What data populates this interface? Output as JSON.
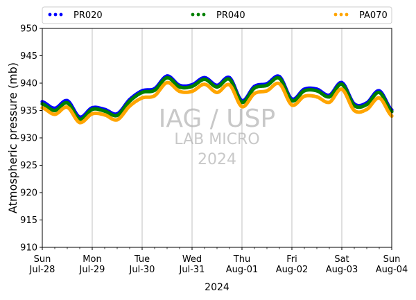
{
  "chart_data": {
    "type": "scatter",
    "title": "",
    "xlabel": "2024",
    "ylabel": "Atmospheric pressure (mb)",
    "ylim": [
      910,
      950
    ],
    "yticks": [
      910,
      915,
      920,
      925,
      930,
      935,
      940,
      945,
      950
    ],
    "xlim": [
      "2024-07-28T00:00",
      "2024-08-04T00:00"
    ],
    "xticks": [
      {
        "day": "Sun",
        "date": "Jul-28"
      },
      {
        "day": "Mon",
        "date": "Jul-29"
      },
      {
        "day": "Tue",
        "date": "Jul-30"
      },
      {
        "day": "Wed",
        "date": "Jul-31"
      },
      {
        "day": "Thu",
        "date": "Aug-01"
      },
      {
        "day": "Fri",
        "date": "Aug-02"
      },
      {
        "day": "Sat",
        "date": "Aug-03"
      },
      {
        "day": "Sun",
        "date": "Aug-04"
      }
    ],
    "grid": "vertical",
    "legend_position": "top",
    "watermark": [
      "IAG / USP",
      "LAB MICRO",
      "2024"
    ],
    "series": [
      {
        "name": "PR020",
        "color": "#0000ff",
        "x": [
          "2024-07-28T00:00",
          "2024-07-28T06:00",
          "2024-07-28T12:00",
          "2024-07-28T18:00",
          "2024-07-29T00:00",
          "2024-07-29T06:00",
          "2024-07-29T12:00",
          "2024-07-29T18:00",
          "2024-07-30T00:00",
          "2024-07-30T06:00",
          "2024-07-30T12:00",
          "2024-07-30T18:00",
          "2024-07-31T00:00",
          "2024-07-31T06:00",
          "2024-07-31T12:00",
          "2024-07-31T18:00",
          "2024-08-01T00:00",
          "2024-08-01T06:00",
          "2024-08-01T12:00",
          "2024-08-01T18:00",
          "2024-08-02T00:00",
          "2024-08-02T06:00",
          "2024-08-02T12:00",
          "2024-08-02T18:00",
          "2024-08-03T00:00",
          "2024-08-03T06:00",
          "2024-08-03T12:00",
          "2024-08-03T18:00",
          "2024-08-04T00:00"
        ],
        "y": [
          936.6,
          935.4,
          936.8,
          933.8,
          935.5,
          935.2,
          934.4,
          937.0,
          938.6,
          939.0,
          941.3,
          939.6,
          939.7,
          941.0,
          939.6,
          941.0,
          936.8,
          939.4,
          939.9,
          941.2,
          937.1,
          938.9,
          938.9,
          937.8,
          940.1,
          936.2,
          936.4,
          938.6,
          935.1
        ]
      },
      {
        "name": "PR040",
        "color": "#008000",
        "x": [
          "2024-07-28T00:00",
          "2024-07-28T06:00",
          "2024-07-28T12:00",
          "2024-07-28T18:00",
          "2024-07-29T00:00",
          "2024-07-29T06:00",
          "2024-07-29T12:00",
          "2024-07-29T18:00",
          "2024-07-30T00:00",
          "2024-07-30T06:00",
          "2024-07-30T12:00",
          "2024-07-30T18:00",
          "2024-07-31T00:00",
          "2024-07-31T06:00",
          "2024-07-31T12:00",
          "2024-07-31T18:00",
          "2024-08-01T00:00",
          "2024-08-01T06:00",
          "2024-08-01T12:00",
          "2024-08-01T18:00",
          "2024-08-02T00:00",
          "2024-08-02T06:00",
          "2024-08-02T12:00",
          "2024-08-02T18:00",
          "2024-08-03T00:00",
          "2024-08-03T06:00",
          "2024-08-03T12:00",
          "2024-08-03T18:00",
          "2024-08-04T00:00"
        ],
        "y": [
          936.2,
          935.0,
          936.4,
          933.4,
          935.2,
          934.9,
          934.1,
          936.7,
          938.3,
          938.7,
          941.0,
          939.3,
          939.4,
          940.7,
          939.3,
          940.7,
          936.5,
          939.1,
          939.6,
          940.9,
          936.8,
          938.6,
          938.6,
          937.5,
          939.8,
          935.9,
          936.1,
          938.3,
          934.8
        ]
      },
      {
        "name": "PA070",
        "color": "#ffa500",
        "x": [
          "2024-07-28T00:00",
          "2024-07-28T06:00",
          "2024-07-28T12:00",
          "2024-07-28T18:00",
          "2024-07-29T00:00",
          "2024-07-29T06:00",
          "2024-07-29T12:00",
          "2024-07-29T18:00",
          "2024-07-30T00:00",
          "2024-07-30T06:00",
          "2024-07-30T12:00",
          "2024-07-30T18:00",
          "2024-07-31T00:00",
          "2024-07-31T06:00",
          "2024-07-31T12:00",
          "2024-07-31T18:00",
          "2024-08-01T00:00",
          "2024-08-01T06:00",
          "2024-08-01T12:00",
          "2024-08-01T18:00",
          "2024-08-02T00:00",
          "2024-08-02T06:00",
          "2024-08-02T12:00",
          "2024-08-02T18:00",
          "2024-08-03T00:00",
          "2024-08-03T06:00",
          "2024-08-03T12:00",
          "2024-08-03T18:00",
          "2024-08-04T00:00"
        ],
        "y": [
          935.5,
          934.3,
          935.6,
          932.8,
          934.4,
          934.2,
          933.3,
          935.8,
          937.3,
          937.7,
          940.1,
          938.5,
          938.5,
          939.8,
          938.3,
          939.7,
          935.7,
          938.1,
          938.6,
          939.9,
          936.0,
          937.6,
          937.5,
          936.5,
          938.9,
          935.0,
          935.2,
          937.3,
          934.0
        ]
      }
    ]
  }
}
